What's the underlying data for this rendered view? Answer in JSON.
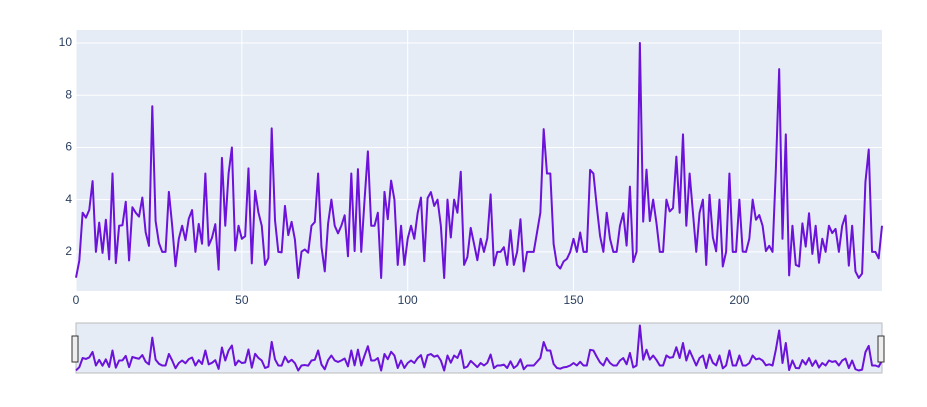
{
  "chart_data": {
    "type": "line",
    "x": [
      0,
      1,
      2,
      3,
      4,
      5,
      6,
      7,
      8,
      9,
      10,
      11,
      12,
      13,
      14,
      15,
      16,
      17,
      18,
      19,
      20,
      21,
      22,
      23,
      24,
      25,
      26,
      27,
      28,
      29,
      30,
      31,
      32,
      33,
      34,
      35,
      36,
      37,
      38,
      39,
      40,
      41,
      42,
      43,
      44,
      45,
      46,
      47,
      48,
      49,
      50,
      51,
      52,
      53,
      54,
      55,
      56,
      57,
      58,
      59,
      60,
      61,
      62,
      63,
      64,
      65,
      66,
      67,
      68,
      69,
      70,
      71,
      72,
      73,
      74,
      75,
      76,
      77,
      78,
      79,
      80,
      81,
      82,
      83,
      84,
      85,
      86,
      87,
      88,
      89,
      90,
      91,
      92,
      93,
      94,
      95,
      96,
      97,
      98,
      99,
      100,
      101,
      102,
      103,
      104,
      105,
      106,
      107,
      108,
      109,
      110,
      111,
      112,
      113,
      114,
      115,
      116,
      117,
      118,
      119,
      120,
      121,
      122,
      123,
      124,
      125,
      126,
      127,
      128,
      129,
      130,
      131,
      132,
      133,
      134,
      135,
      136,
      137,
      138,
      139,
      140,
      141,
      142,
      143,
      144,
      145,
      146,
      147,
      148,
      149,
      150,
      151,
      152,
      153,
      154,
      155,
      156,
      157,
      158,
      159,
      160,
      161,
      162,
      163,
      164,
      165,
      166,
      167,
      168,
      169,
      170,
      171,
      172,
      173,
      174,
      175,
      176,
      177,
      178,
      179,
      180,
      181,
      182,
      183,
      184,
      185,
      186,
      187,
      188,
      189,
      190,
      191,
      192,
      193,
      194,
      195,
      196,
      197,
      198,
      199,
      200,
      201,
      202,
      203,
      204,
      205,
      206,
      207,
      208,
      209,
      210,
      211,
      212,
      213,
      214,
      215,
      216,
      217,
      218,
      219,
      220,
      221,
      222,
      223,
      224,
      225,
      226,
      227,
      228,
      229,
      230,
      231,
      232,
      233,
      234,
      235,
      236,
      237,
      238,
      239,
      240,
      241,
      242,
      243
    ],
    "series": [
      {
        "color": "#6c12d9",
        "values": [
          1.01,
          1.66,
          3.5,
          3.31,
          3.61,
          4.71,
          2,
          3.12,
          1.96,
          3.23,
          1.71,
          5,
          1.57,
          3,
          3.02,
          3.92,
          1.67,
          3.71,
          3.5,
          3.35,
          4.08,
          2.75,
          2.23,
          7.58,
          3.18,
          2.34,
          2,
          2,
          4.3,
          3,
          1.45,
          2.5,
          3,
          2.45,
          3.27,
          3.6,
          2,
          3.07,
          2.31,
          5,
          2.24,
          2.54,
          3.06,
          1.32,
          5.6,
          3,
          5,
          6,
          2.05,
          3,
          2.5,
          2.6,
          5.2,
          1.56,
          4.34,
          3.51,
          3,
          1.5,
          1.76,
          6.73,
          3.21,
          2,
          1.98,
          3.76,
          2.64,
          3.15,
          2.47,
          1,
          2.01,
          2.09,
          1.97,
          3,
          3.14,
          5,
          2.2,
          1.25,
          3.08,
          4,
          3,
          2.71,
          3,
          3.4,
          1.83,
          5,
          2.03,
          5.17,
          2,
          4,
          5.85,
          3,
          3,
          3.5,
          1,
          4.3,
          3.25,
          4.73,
          4,
          1.5,
          3,
          1.5,
          2.5,
          3,
          2.5,
          3.48,
          4.08,
          1.64,
          4.06,
          4.29,
          3.76,
          4,
          3,
          1,
          4,
          2.55,
          4,
          3.5,
          5.07,
          1.5,
          1.8,
          2.92,
          2.31,
          1.68,
          2.5,
          2,
          2.52,
          4.2,
          1.48,
          2,
          2,
          2.18,
          1.5,
          2.83,
          1.5,
          2,
          3.25,
          1.25,
          2,
          2,
          2,
          2.75,
          3.5,
          6.7,
          5,
          5,
          2.3,
          1.5,
          1.36,
          1.63,
          1.73,
          2,
          2.5,
          2,
          2.74,
          2,
          2,
          5.14,
          5,
          3.75,
          2.61,
          2,
          3.5,
          2.5,
          2,
          2,
          3,
          3.48,
          2.24,
          4.5,
          1.61,
          2,
          10,
          3.16,
          5.15,
          3.18,
          4,
          3.11,
          2,
          2,
          4,
          3.55,
          3.68,
          5.65,
          3.5,
          6.5,
          3,
          5,
          3.5,
          2,
          3.5,
          4,
          1.5,
          4.19,
          2.56,
          2.02,
          4,
          1.44,
          2,
          5,
          2,
          2,
          4,
          2.01,
          2,
          2.5,
          4,
          3.23,
          3.41,
          3,
          2.03,
          2.23,
          2,
          5.16,
          9,
          2.5,
          6.5,
          1.1,
          3,
          1.5,
          1.44,
          3.09,
          2.2,
          3.48,
          1.92,
          3,
          1.58,
          2.5,
          2,
          3,
          2.72,
          2.88,
          2,
          3,
          3.39,
          1.47,
          3,
          1.25,
          1,
          1.17,
          4.67,
          5.92,
          2,
          2,
          1.75,
          3
        ]
      }
    ],
    "xlim": [
      0,
      243
    ],
    "ylim": [
      0.5,
      10.5
    ],
    "xticks": [
      0,
      50,
      100,
      150,
      200
    ],
    "yticks": [
      2,
      4,
      6,
      8,
      10
    ],
    "grid": true,
    "rangeslider": true
  }
}
